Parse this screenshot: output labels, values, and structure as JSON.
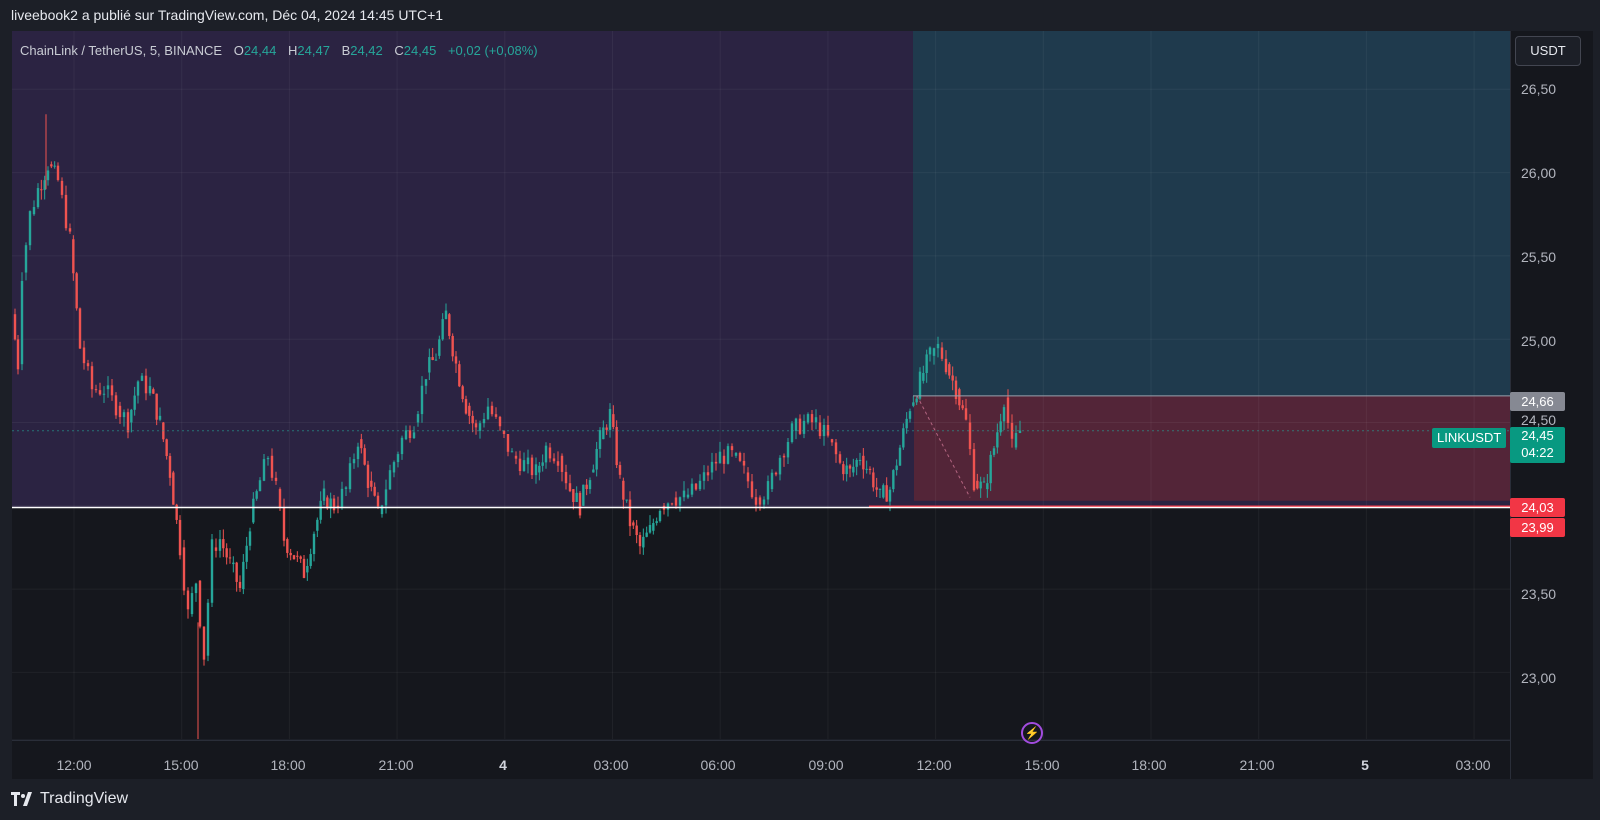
{
  "header": {
    "published_by": "liveebook2 a publié sur TradingView.com, Déc 04, 2024 14:45 UTC+1"
  },
  "legend": {
    "symbol": "ChainLink / TetherUS, 5, BINANCE",
    "open_label": "O",
    "open": "24,44",
    "high_label": "H",
    "high": "24,47",
    "low_label": "B",
    "low": "24,42",
    "close_label": "C",
    "close": "24,45",
    "change": "+0,02 (+0,08%)"
  },
  "price_scale": {
    "currency": "USDT",
    "ticks": [
      "26,50",
      "26,00",
      "25,50",
      "25,00",
      "24,50",
      "23,50",
      "23,00"
    ],
    "labels": {
      "target": "24,66",
      "last_price": "24,45",
      "countdown": "04:22",
      "stop": "24,03",
      "support": "23,99"
    }
  },
  "symbol_tag": "LINKUSDT",
  "time_axis": {
    "ticks": [
      "12:00",
      "15:00",
      "18:00",
      "21:00",
      "4",
      "03:00",
      "06:00",
      "09:00",
      "12:00",
      "15:00",
      "18:00",
      "21:00",
      "5",
      "03:00"
    ]
  },
  "footer": {
    "brand": "TradingView"
  },
  "colors": {
    "up": "#26a69a",
    "down": "#ef5350",
    "purple_zone": "#2b2342",
    "teal_zone": "#1f3a4d",
    "stop_zone": "#5a2636",
    "support_line": "#ffffff",
    "stop_line": "#f23645"
  },
  "chart_data": {
    "type": "candlestick",
    "symbol": "ChainLink / TetherUS, 5, BINANCE",
    "ylim": [
      22.6,
      26.85
    ],
    "x_ticks": [
      "12:00",
      "15:00",
      "18:00",
      "21:00",
      "4",
      "03:00",
      "06:00",
      "09:00",
      "12:00",
      "15:00",
      "18:00",
      "21:00",
      "5",
      "03:00"
    ],
    "price_path": [
      [
        0,
        25.15
      ],
      [
        6,
        24.85
      ],
      [
        10,
        25.4
      ],
      [
        18,
        25.75
      ],
      [
        26,
        25.9
      ],
      [
        36,
        26.05
      ],
      [
        46,
        25.95
      ],
      [
        58,
        25.6
      ],
      [
        68,
        24.95
      ],
      [
        80,
        24.7
      ],
      [
        92,
        24.7
      ],
      [
        104,
        24.6
      ],
      [
        116,
        24.5
      ],
      [
        126,
        24.75
      ],
      [
        138,
        24.7
      ],
      [
        148,
        24.5
      ],
      [
        158,
        24.2
      ],
      [
        168,
        23.75
      ],
      [
        176,
        23.35
      ],
      [
        184,
        23.55
      ],
      [
        192,
        23.1
      ],
      [
        200,
        23.75
      ],
      [
        208,
        23.8
      ],
      [
        218,
        23.65
      ],
      [
        228,
        23.5
      ],
      [
        238,
        23.9
      ],
      [
        248,
        24.15
      ],
      [
        256,
        24.3
      ],
      [
        264,
        24.1
      ],
      [
        272,
        23.8
      ],
      [
        282,
        23.7
      ],
      [
        292,
        23.6
      ],
      [
        302,
        23.85
      ],
      [
        312,
        24.05
      ],
      [
        322,
        24.0
      ],
      [
        334,
        24.1
      ],
      [
        346,
        24.4
      ],
      [
        356,
        24.15
      ],
      [
        366,
        23.95
      ],
      [
        378,
        24.2
      ],
      [
        390,
        24.4
      ],
      [
        402,
        24.5
      ],
      [
        414,
        24.8
      ],
      [
        424,
        24.9
      ],
      [
        434,
        25.15
      ],
      [
        444,
        24.85
      ],
      [
        454,
        24.6
      ],
      [
        464,
        24.45
      ],
      [
        476,
        24.6
      ],
      [
        488,
        24.45
      ],
      [
        500,
        24.3
      ],
      [
        512,
        24.25
      ],
      [
        524,
        24.2
      ],
      [
        534,
        24.35
      ],
      [
        546,
        24.3
      ],
      [
        558,
        24.1
      ],
      [
        568,
        24.0
      ],
      [
        578,
        24.2
      ],
      [
        588,
        24.4
      ],
      [
        598,
        24.55
      ],
      [
        608,
        24.15
      ],
      [
        618,
        23.9
      ],
      [
        628,
        23.75
      ],
      [
        638,
        23.85
      ],
      [
        648,
        24.0
      ],
      [
        660,
        24.05
      ],
      [
        672,
        24.05
      ],
      [
        684,
        24.1
      ],
      [
        696,
        24.2
      ],
      [
        708,
        24.3
      ],
      [
        720,
        24.3
      ],
      [
        732,
        24.2
      ],
      [
        744,
        24.05
      ],
      [
        756,
        24.1
      ],
      [
        768,
        24.3
      ],
      [
        780,
        24.45
      ],
      [
        792,
        24.5
      ],
      [
        804,
        24.5
      ],
      [
        816,
        24.4
      ],
      [
        828,
        24.25
      ],
      [
        838,
        24.2
      ],
      [
        848,
        24.3
      ],
      [
        858,
        24.2
      ],
      [
        868,
        24.05
      ],
      [
        878,
        24.1
      ],
      [
        888,
        24.35
      ],
      [
        898,
        24.6
      ],
      [
        908,
        24.75
      ],
      [
        918,
        24.9
      ],
      [
        926,
        24.95
      ],
      [
        934,
        24.85
      ],
      [
        944,
        24.7
      ],
      [
        954,
        24.5
      ],
      [
        962,
        24.15
      ],
      [
        972,
        24.1
      ],
      [
        982,
        24.35
      ],
      [
        992,
        24.65
      ],
      [
        1000,
        24.35
      ],
      [
        1008,
        24.45
      ]
    ],
    "annotations": {
      "target_level": 24.66,
      "last_price": 24.45,
      "stop_level": 24.03,
      "support_level": 23.99
    }
  }
}
